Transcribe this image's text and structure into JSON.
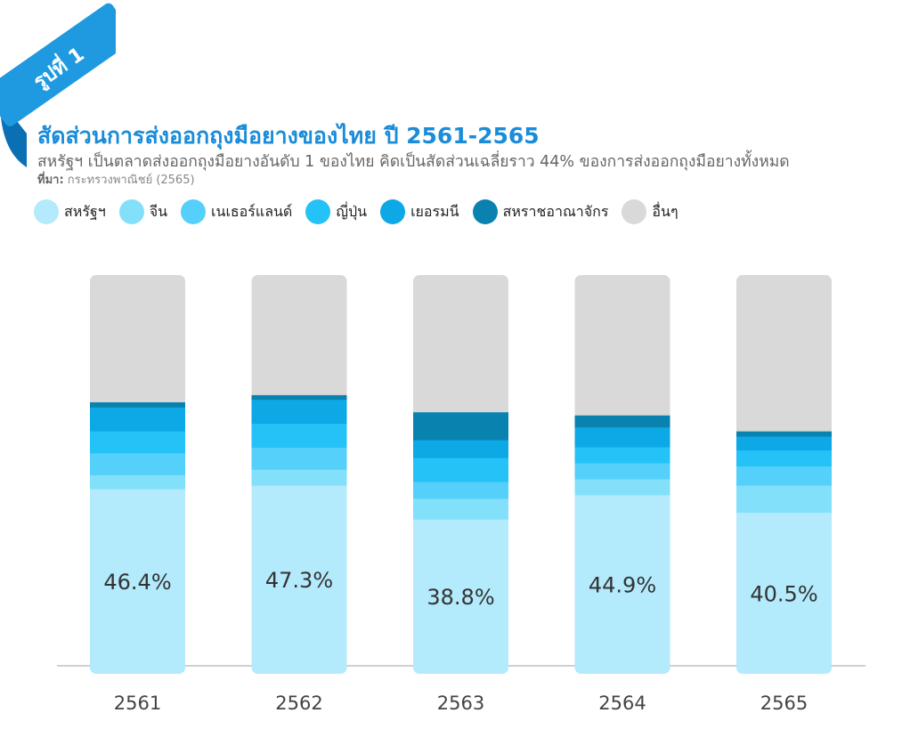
{
  "badge": {
    "label": "รูปที่ 1"
  },
  "header": {
    "title": "สัดส่วนการส่งออกถุงมือยางของไทย ปี 2561-2565",
    "subtitle": "สหรัฐฯ เป็นตลาดส่งออกถุงมือยางอันดับ 1 ของไทย คิดเป็นสัดส่วนเฉลี่ยราว 44% ของการส่งออกถุงมือยางทั้งหมด",
    "source_label": "ที่มา:",
    "source_text": "กระทรวงพาณิชย์ (2565)"
  },
  "chart_data": {
    "type": "bar",
    "stacked": true,
    "normalized": true,
    "categories": [
      "2561",
      "2562",
      "2563",
      "2564",
      "2565"
    ],
    "series": [
      {
        "name": "สหรัฐฯ",
        "color": "#b3eafc",
        "values": [
          46.4,
          47.3,
          38.8,
          44.9,
          40.5
        ]
      },
      {
        "name": "จีน",
        "color": "#82e0fb",
        "values": [
          3.5,
          4.0,
          5.2,
          4.0,
          6.8
        ]
      },
      {
        "name": "เนเธอร์แลนด์",
        "color": "#55d0fa",
        "values": [
          5.5,
          5.5,
          4.2,
          4.0,
          4.8
        ]
      },
      {
        "name": "ญี่ปุ่น",
        "color": "#25c2f8",
        "values": [
          5.5,
          6.0,
          6.0,
          4.0,
          4.0
        ]
      },
      {
        "name": "เยอรมนี",
        "color": "#0da8e6",
        "values": [
          6.0,
          6.0,
          4.5,
          5.0,
          3.5
        ]
      },
      {
        "name": "สหราชอาณาจักร",
        "color": "#0a82b0",
        "values": [
          1.3,
          1.2,
          7.0,
          3.0,
          1.3
        ]
      },
      {
        "name": "อื่นๆ",
        "color": "#d9d9d9",
        "values": [
          31.8,
          30.0,
          34.3,
          35.1,
          39.1
        ]
      }
    ],
    "data_labels": [
      "46.4%",
      "47.3%",
      "38.8%",
      "44.9%",
      "40.5%"
    ],
    "ylim": [
      0,
      100
    ],
    "legend": "top-left",
    "grid": false
  }
}
